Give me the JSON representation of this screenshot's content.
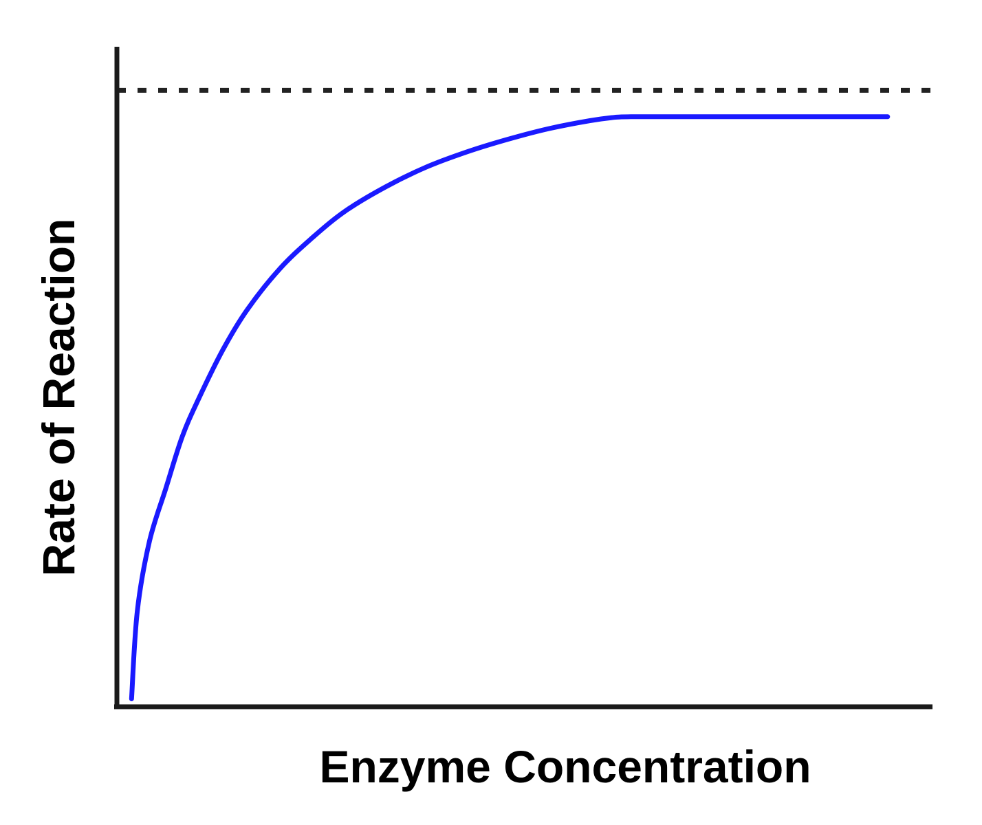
{
  "chart_data": {
    "type": "line",
    "title": "",
    "xlabel": "Enzyme Concentration",
    "ylabel": "Rate of Reaction",
    "xlim": [
      0,
      100
    ],
    "ylim": [
      0,
      100
    ],
    "grid": false,
    "legend": "none",
    "series": [
      {
        "color": "#1a1aff",
        "x": [
          1.8,
          2.5,
          4,
          6,
          8,
          10,
          13,
          16,
          20,
          24,
          28,
          33,
          38,
          43,
          48,
          53,
          58,
          61,
          63,
          70,
          80,
          90,
          94.5
        ],
        "y": [
          1.2,
          14.5,
          25.1,
          33.1,
          40.9,
          46.6,
          54.1,
          60.2,
          66.4,
          71.1,
          75.1,
          78.8,
          81.8,
          84.1,
          86.0,
          87.6,
          88.8,
          89.3,
          89.4,
          89.4,
          89.4,
          89.4,
          89.4
        ]
      }
    ],
    "reference_lines": [
      {
        "orientation": "horizontal",
        "y": 93.4,
        "style": "dashed",
        "color": "#222222"
      }
    ],
    "colors": {
      "axis": "#1a1a1a",
      "curve": "#1a1aff",
      "dashed": "#222222",
      "text": "#000000"
    }
  }
}
